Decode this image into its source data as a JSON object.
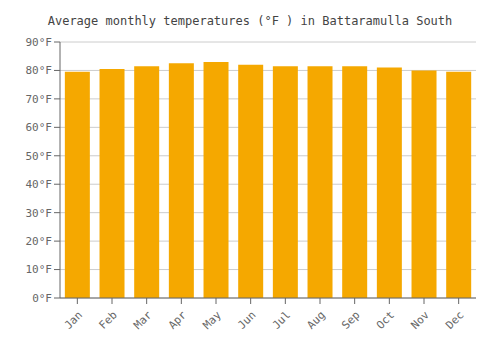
{
  "chart_data": {
    "type": "bar",
    "title": "Average monthly temperatures (°F ) in Battaramulla South",
    "categories": [
      "Jan",
      "Feb",
      "Mar",
      "Apr",
      "May",
      "Jun",
      "Jul",
      "Aug",
      "Sep",
      "Oct",
      "Nov",
      "Dec"
    ],
    "values": [
      79.5,
      80.5,
      81.5,
      82.5,
      83.0,
      82.0,
      81.5,
      81.5,
      81.5,
      81.0,
      80.0,
      79.5
    ],
    "color": "#F5A800",
    "ylim": [
      0,
      90
    ],
    "yticks": [
      {
        "value": 0,
        "label": "0°F"
      },
      {
        "value": 10,
        "label": "10°F"
      },
      {
        "value": 20,
        "label": "20°F"
      },
      {
        "value": 30,
        "label": "30°F"
      },
      {
        "value": 40,
        "label": "40°F"
      },
      {
        "value": 50,
        "label": "50°F"
      },
      {
        "value": 60,
        "label": "60°F"
      },
      {
        "value": 70,
        "label": "70°F"
      },
      {
        "value": 80,
        "label": "80°F"
      },
      {
        "value": 90,
        "label": "90°F"
      }
    ],
    "grid": true
  }
}
